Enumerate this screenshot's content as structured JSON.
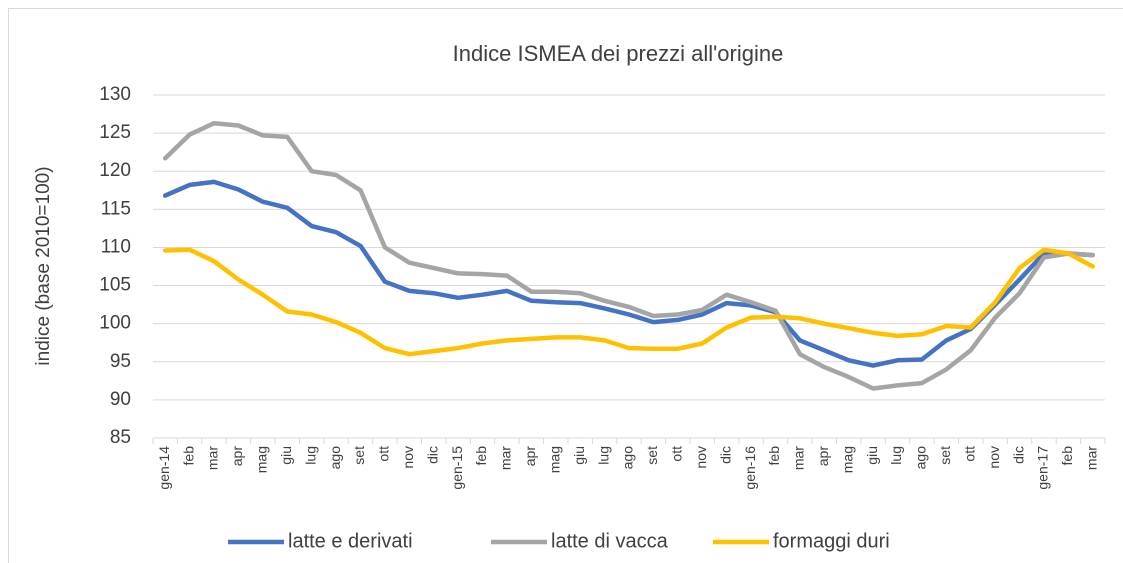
{
  "chart_data": {
    "type": "line",
    "title": "Indice ISMEA dei prezzi all'origine",
    "y_label": "indice (base 2010=100)",
    "categories": [
      "gen-14",
      "feb",
      "mar",
      "apr",
      "mag",
      "giu",
      "lug",
      "ago",
      "set",
      "ott",
      "nov",
      "dic",
      "gen-15",
      "feb",
      "mar",
      "apr",
      "mag",
      "giu",
      "lug",
      "ago",
      "set",
      "ott",
      "nov",
      "dic",
      "gen-16",
      "feb",
      "mar",
      "apr",
      "mag",
      "giu",
      "lug",
      "ago",
      "set",
      "ott",
      "nov",
      "dic",
      "gen-17",
      "feb",
      "mar"
    ],
    "series": [
      {
        "name": "latte e derivati",
        "color": "#4472c4",
        "values": [
          116.8,
          118.2,
          118.6,
          117.6,
          116,
          115.2,
          112.8,
          112,
          110.2,
          105.5,
          104.3,
          104,
          103.4,
          103.8,
          104.3,
          103,
          102.8,
          102.7,
          102,
          101.2,
          100.2,
          100.5,
          101.2,
          102.7,
          102.4,
          101.5,
          97.8,
          96.5,
          95.2,
          94.5,
          95.2,
          95.3,
          97.8,
          99.3,
          102.5,
          105.8,
          109.2,
          109.2,
          109
        ]
      },
      {
        "name": "latte di vacca",
        "color": "#a5a5a5",
        "values": [
          121.7,
          124.8,
          126.3,
          126,
          124.7,
          124.5,
          120,
          119.5,
          117.5,
          110,
          108,
          107.3,
          106.6,
          106.5,
          106.3,
          104.2,
          104.2,
          104,
          103,
          102.2,
          101,
          101.2,
          101.8,
          103.8,
          102.8,
          101.7,
          96,
          94.3,
          93,
          91.5,
          91.9,
          92.2,
          94,
          96.5,
          100.8,
          104,
          108.7,
          109.2,
          109
        ]
      },
      {
        "name": "formaggi duri",
        "color": "#ffc000",
        "values": [
          109.6,
          109.7,
          108.2,
          105.8,
          103.8,
          101.6,
          101.2,
          100.2,
          98.8,
          96.8,
          96,
          96.4,
          96.8,
          97.4,
          97.8,
          98,
          98.2,
          98.2,
          97.8,
          96.8,
          96.7,
          96.7,
          97.4,
          99.5,
          100.8,
          100.9,
          100.7,
          100,
          99.4,
          98.8,
          98.4,
          98.6,
          99.7,
          99.5,
          102.8,
          107.3,
          109.7,
          109.2,
          107.5
        ]
      }
    ],
    "ylim": [
      85,
      130
    ],
    "yticks": [
      85,
      90,
      95,
      100,
      105,
      110,
      115,
      120,
      125,
      130
    ],
    "grid": true,
    "legend": "bottom"
  }
}
